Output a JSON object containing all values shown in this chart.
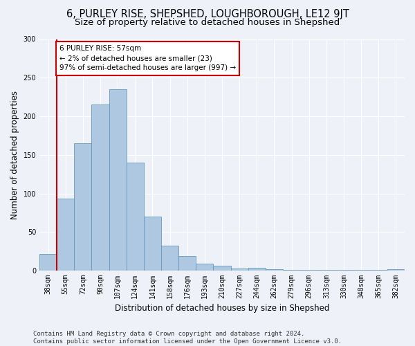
{
  "title": "6, PURLEY RISE, SHEPSHED, LOUGHBOROUGH, LE12 9JT",
  "subtitle": "Size of property relative to detached houses in Shepshed",
  "xlabel": "Distribution of detached houses by size in Shepshed",
  "ylabel": "Number of detached properties",
  "categories": [
    "38sqm",
    "55sqm",
    "72sqm",
    "90sqm",
    "107sqm",
    "124sqm",
    "141sqm",
    "158sqm",
    "176sqm",
    "193sqm",
    "210sqm",
    "227sqm",
    "244sqm",
    "262sqm",
    "279sqm",
    "296sqm",
    "313sqm",
    "330sqm",
    "348sqm",
    "365sqm",
    "382sqm"
  ],
  "bar_values": [
    22,
    93,
    165,
    215,
    235,
    140,
    70,
    32,
    19,
    9,
    6,
    3,
    4,
    2,
    1,
    1,
    1,
    1,
    1,
    1,
    2
  ],
  "bar_color": "#adc8e0",
  "bar_edge_color": "#6699bb",
  "annotation_line1": "6 PURLEY RISE: 57sqm",
  "annotation_line2": "← 2% of detached houses are smaller (23)",
  "annotation_line3": "97% of semi-detached houses are larger (997) →",
  "annotation_box_color": "#ffffff",
  "annotation_box_edge_color": "#cc0000",
  "vline_color": "#cc0000",
  "vline_x_index": 0.5,
  "ylim": [
    0,
    300
  ],
  "yticks": [
    0,
    50,
    100,
    150,
    200,
    250,
    300
  ],
  "background_color": "#eef2f8",
  "grid_color": "#ffffff",
  "footer": "Contains HM Land Registry data © Crown copyright and database right 2024.\nContains public sector information licensed under the Open Government Licence v3.0.",
  "title_fontsize": 10.5,
  "subtitle_fontsize": 9.5,
  "xlabel_fontsize": 8.5,
  "ylabel_fontsize": 8.5,
  "tick_fontsize": 7,
  "footer_fontsize": 6.5,
  "annotation_fontsize": 7.5
}
